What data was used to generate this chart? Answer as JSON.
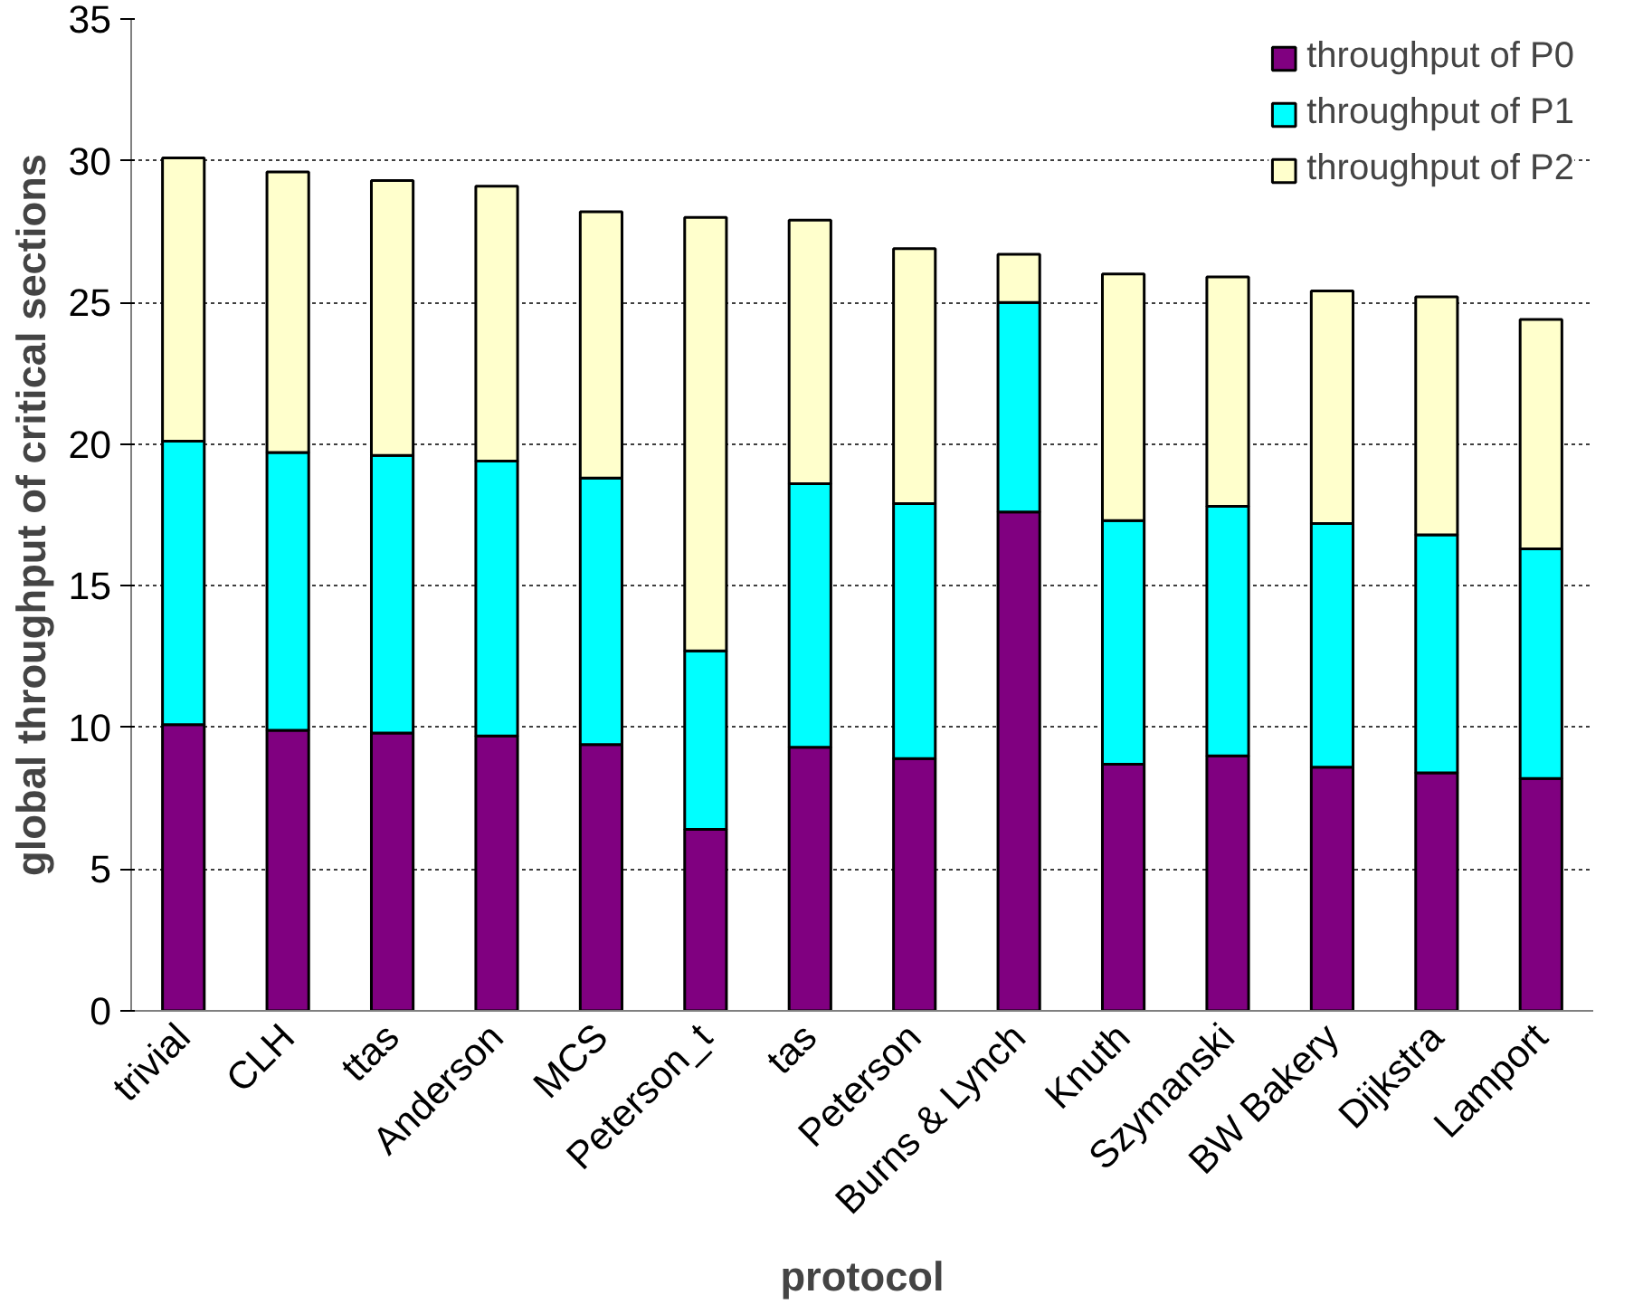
{
  "chart_data": {
    "type": "bar",
    "stacked": true,
    "xlabel": "protocol",
    "ylabel": "global throughput of critical sections",
    "categories": [
      "trivial",
      "CLH",
      "ttas",
      "Anderson",
      "MCS",
      "Peterson_t",
      "tas",
      "Peterson",
      "Burns & Lynch",
      "Knuth",
      "Szymanski",
      "BW Bakery",
      "Dijkstra",
      "Lamport"
    ],
    "series": [
      {
        "name": "throughput of P0",
        "color": "#800080",
        "values": [
          10.1,
          9.9,
          9.8,
          9.7,
          9.4,
          6.4,
          9.3,
          8.9,
          17.6,
          8.7,
          9.0,
          8.6,
          8.4,
          8.2
        ]
      },
      {
        "name": "throughput of P1",
        "color": "#00ffff",
        "values": [
          10.0,
          9.8,
          9.8,
          9.7,
          9.4,
          6.3,
          9.3,
          9.0,
          7.4,
          8.6,
          8.8,
          8.6,
          8.4,
          8.1
        ]
      },
      {
        "name": "throughput of P2",
        "color": "#ffffcc",
        "values": [
          10.0,
          9.9,
          9.7,
          9.7,
          9.4,
          15.3,
          9.3,
          9.0,
          1.7,
          8.7,
          8.1,
          8.2,
          8.4,
          8.1
        ]
      }
    ],
    "ylim": [
      0,
      35
    ],
    "yticks": [
      0,
      5,
      10,
      15,
      20,
      25,
      30,
      35
    ],
    "grid": "y",
    "legend": "top right"
  }
}
